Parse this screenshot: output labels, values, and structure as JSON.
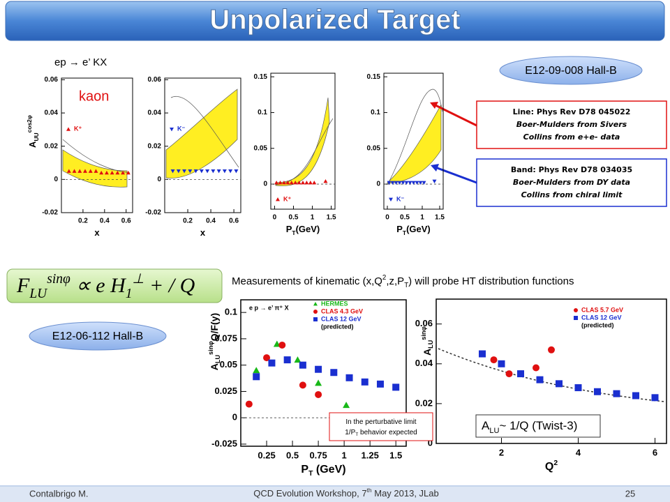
{
  "header": {
    "title": "Unpolarized Target"
  },
  "labels": {
    "reaction": "ep → e’ KX",
    "kaon": "kaon",
    "exp_top": "E12-09-008  Hall-B",
    "exp_bottom": "E12-06-112  Hall-B"
  },
  "line_box": [
    "Line:      Phys Rev D78 045022",
    "Boer-Mulders from Sivers",
    "Collins from e+e- data"
  ],
  "band_box": [
    "Band:      Phys Rev D78 034035",
    "Boer-Mulders from DY data",
    "Collins from chiral limit"
  ],
  "formula": [
    {
      "text": "F"
    },
    {
      "text": "LU",
      "shift": "sub"
    },
    {
      "text": "sinφ",
      "shift": "super"
    },
    {
      "text": " ∝ "
    },
    {
      "text": "e H"
    },
    {
      "text": "1",
      "shift": "sub"
    },
    {
      "text": "⊥",
      "shift": "super"
    },
    {
      "text": " + "
    },
    {
      "text": " / Q"
    }
  ],
  "headline": [
    {
      "text": "Measurements of kinematic (x,Q"
    },
    {
      "text": "2",
      "shift": "super"
    },
    {
      "text": ",z,P"
    },
    {
      "text": "T",
      "shift": "sub"
    },
    {
      "text": ") will probe HT distribution functions"
    }
  ],
  "note_box": [
    {
      "text": "In the perturbative limit"
    },
    {
      "text": "1/P"
    },
    {
      "text": "T",
      "shift": "sub"
    },
    {
      "text": " behavior expected"
    }
  ],
  "twist_box": [
    {
      "text": "A"
    },
    {
      "text": "LU",
      "shift": "sub"
    },
    {
      "text": "~ 1/Q (Twist-3)"
    }
  ],
  "footer": {
    "author": "Contalbrigo M.",
    "event": [
      {
        "text": "QCD Evolution Workshop, 7"
      },
      {
        "text": "th",
        "shift": "super"
      },
      {
        "text": " May 2013, JLab"
      }
    ],
    "page": "25"
  },
  "chart_data": [
    {
      "type": "scatter",
      "xlim": [
        0,
        0.66
      ],
      "ylim": [
        -0.02,
        0.061
      ],
      "xticks": [
        0.2,
        0.4,
        0.6
      ],
      "yticks": [
        -0.02,
        0,
        0.02,
        0.04,
        0.06
      ],
      "x_label": [
        {
          "text": "x"
        }
      ],
      "y_label": [
        {
          "text": "A"
        },
        {
          "text": "UU",
          "shift": "sub"
        },
        {
          "text": "cos2φ",
          "shift": "super"
        }
      ],
      "zero_line": true,
      "legend": "middle-left",
      "series": [
        {
          "name": "K⁺",
          "color": "#e01010",
          "marker": "triangle",
          "x": [
            0.07,
            0.12,
            0.17,
            0.22,
            0.27,
            0.32,
            0.37,
            0.42,
            0.47,
            0.52,
            0.57,
            0.62
          ],
          "values": [
            0.005,
            0.005,
            0.005,
            0.005,
            0.005,
            0.005,
            0.004,
            0.004,
            0.004,
            0.004,
            0.004,
            0.004
          ]
        }
      ]
    },
    {
      "type": "scatter",
      "xlim": [
        0,
        0.66
      ],
      "ylim": [
        -0.02,
        0.061
      ],
      "xticks": [
        0.2,
        0.4,
        0.6
      ],
      "yticks": [
        -0.02,
        0,
        0.02,
        0.04,
        0.06
      ],
      "x_label": [
        {
          "text": "x"
        }
      ],
      "zero_line": true,
      "legend": "middle-left",
      "series": [
        {
          "name": "K⁻",
          "color": "#1a2fd0",
          "marker": "down-triangle",
          "x": [
            0.07,
            0.12,
            0.17,
            0.22,
            0.27,
            0.32,
            0.37,
            0.42,
            0.47,
            0.52,
            0.57,
            0.62
          ],
          "values": [
            0.005,
            0.005,
            0.005,
            0.005,
            0.005,
            0.005,
            0.005,
            0.005,
            0.005,
            0.005,
            0.005,
            0.005
          ]
        }
      ]
    },
    {
      "type": "scatter",
      "xlim": [
        -0.1,
        1.6
      ],
      "ylim": [
        -0.035,
        0.155
      ],
      "xticks": [
        0,
        0.5,
        1,
        1.5
      ],
      "yticks": [
        0,
        0.05,
        0.1,
        0.15
      ],
      "x_label": [
        {
          "text": "P"
        },
        {
          "text": "T",
          "shift": "sub"
        },
        {
          "text": "(GeV)"
        }
      ],
      "zero_line": true,
      "legend": "lower-left",
      "series": [
        {
          "name": "K⁺",
          "color": "#e01010",
          "marker": "triangle",
          "x": [
            0.05,
            0.15,
            0.25,
            0.35,
            0.45,
            0.55,
            0.65,
            0.75,
            0.85,
            0.95,
            1.05,
            1.35
          ],
          "values": [
            0.002,
            0.002,
            0.002,
            0.002,
            0.002,
            0.002,
            0.002,
            0.002,
            0.002,
            0.002,
            0.002,
            0.004
          ]
        }
      ]
    },
    {
      "type": "scatter",
      "xlim": [
        -0.1,
        1.6
      ],
      "ylim": [
        -0.035,
        0.155
      ],
      "xticks": [
        0,
        0.5,
        1,
        1.5
      ],
      "yticks": [
        0,
        0.05,
        0.1,
        0.15
      ],
      "x_label": [
        {
          "text": "P"
        },
        {
          "text": "T",
          "shift": "sub"
        },
        {
          "text": "(GeV)"
        }
      ],
      "zero_line": true,
      "legend": "lower-left",
      "series": [
        {
          "name": "K⁻",
          "color": "#1a2fd0",
          "marker": "down-triangle",
          "x": [
            0.05,
            0.15,
            0.25,
            0.35,
            0.45,
            0.55,
            0.65,
            0.75,
            0.85,
            0.95,
            1.05,
            1.35
          ],
          "values": [
            0.002,
            0.002,
            0.002,
            0.002,
            0.002,
            0.002,
            0.002,
            0.002,
            0.002,
            0.002,
            0.002,
            0.004
          ]
        }
      ]
    },
    {
      "type": "scatter",
      "xlim": [
        0,
        1.6
      ],
      "ylim": [
        -0.027,
        0.112
      ],
      "xticks": [
        0.25,
        0.5,
        0.75,
        1,
        1.25,
        1.5
      ],
      "yticks": [
        -0.025,
        0,
        0.025,
        0.05,
        0.075,
        0.1
      ],
      "x_label": [
        {
          "text": "P"
        },
        {
          "text": "T",
          "shift": "sub"
        },
        {
          "text": " (GeV)"
        }
      ],
      "y_label": [
        {
          "text": "A"
        },
        {
          "text": "LU",
          "shift": "sub"
        },
        {
          "text": "sinφ",
          "shift": "super"
        },
        {
          "text": "Q/F(y)"
        }
      ],
      "zero_line": true,
      "legend": "upper-right",
      "annotation": "e p → e’ π⁺ X",
      "series": [
        {
          "name": "HERMES",
          "color": "#18b818",
          "marker": "triangle",
          "x": [
            0.15,
            0.35,
            0.55,
            0.75,
            1.02
          ],
          "values": [
            0.045,
            0.07,
            0.055,
            0.033,
            0.012
          ]
        },
        {
          "name": "CLAS 4.3 GeV",
          "color": "#e01010",
          "marker": "circle",
          "x": [
            0.08,
            0.25,
            0.4,
            0.6,
            0.75
          ],
          "values": [
            0.013,
            0.057,
            0.069,
            0.031,
            0.022
          ]
        },
        {
          "name": "CLAS 12 GeV",
          "note": "(predicted)",
          "color": "#1a2fd0",
          "marker": "square",
          "x": [
            0.15,
            0.3,
            0.45,
            0.6,
            0.75,
            0.9,
            1.05,
            1.2,
            1.35,
            1.5
          ],
          "values": [
            0.039,
            0.052,
            0.055,
            0.05,
            0.046,
            0.043,
            0.038,
            0.034,
            0.032,
            0.029
          ]
        }
      ]
    },
    {
      "type": "scatter",
      "xlim": [
        0.3,
        6.3
      ],
      "ylim": [
        0,
        0.0725
      ],
      "xticks": [
        2,
        4,
        6
      ],
      "yticks": [
        0,
        0.02,
        0.04,
        0.06
      ],
      "x_label": [
        {
          "text": "Q"
        },
        {
          "text": "2",
          "shift": "super"
        }
      ],
      "y_label": [
        {
          "text": "A"
        },
        {
          "text": "LU",
          "shift": "sub"
        },
        {
          "text": "sinφ",
          "shift": "super"
        }
      ],
      "zero_line": false,
      "legend": "upper-right",
      "series": [
        {
          "name": "CLAS 5.7 GeV",
          "color": "#e01010",
          "marker": "circle",
          "x": [
            1.8,
            2.2,
            2.9,
            3.3
          ],
          "values": [
            0.042,
            0.035,
            0.038,
            0.047
          ]
        },
        {
          "name": "CLAS 12 GeV",
          "note": "(predicted)",
          "color": "#1a2fd0",
          "marker": "square",
          "x": [
            1.5,
            2.0,
            2.5,
            3.0,
            3.5,
            4.0,
            4.5,
            5.0,
            5.5,
            6.0
          ],
          "values": [
            0.045,
            0.04,
            0.035,
            0.032,
            0.03,
            0.028,
            0.026,
            0.025,
            0.024,
            0.023
          ]
        }
      ]
    }
  ]
}
